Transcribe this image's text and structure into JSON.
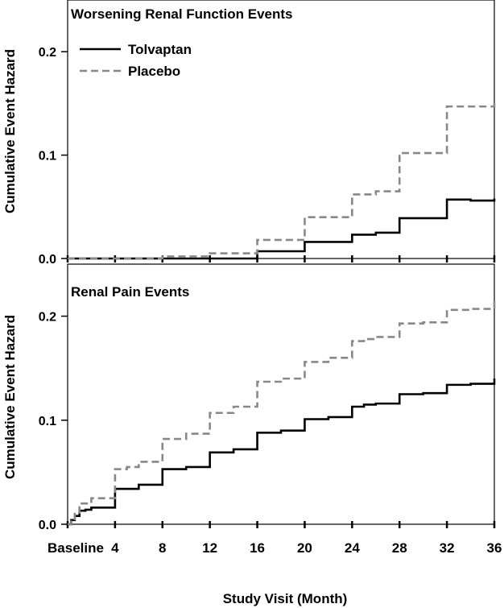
{
  "chart_data": [
    {
      "type": "line",
      "title": "Worsening Renal Function Events",
      "xlabel": "Study Visit (Month)",
      "ylabel": "Cumulative Event Hazard",
      "ylim": [
        0,
        0.25
      ],
      "yticks": [
        0.0,
        0.1,
        0.2
      ],
      "ytick_labels": [
        "0.0",
        "0.1",
        "0.2"
      ],
      "xlim": [
        0,
        36
      ],
      "xticks": [
        0,
        4,
        8,
        12,
        16,
        20,
        24,
        28,
        32,
        36
      ],
      "legend_position": "top-left",
      "series": [
        {
          "name": "Tolvaptan",
          "color": "#000000",
          "style": "solid",
          "x": [
            0,
            16,
            20,
            24,
            26,
            28,
            32,
            34,
            36
          ],
          "y": [
            0.0,
            0.007,
            0.016,
            0.023,
            0.025,
            0.039,
            0.057,
            0.056,
            0.058
          ]
        },
        {
          "name": "Placebo",
          "color": "#888888",
          "style": "dashed",
          "x": [
            0,
            8,
            12,
            16,
            20,
            24,
            26,
            28,
            32,
            36
          ],
          "y": [
            0.0,
            0.002,
            0.005,
            0.018,
            0.04,
            0.062,
            0.065,
            0.102,
            0.147,
            0.153
          ]
        }
      ]
    },
    {
      "type": "line",
      "title": "Renal Pain Events",
      "xlabel": "Study Visit (Month)",
      "ylabel": "Cumulative Event Hazard",
      "ylim": [
        0,
        0.25
      ],
      "yticks": [
        0.0,
        0.1,
        0.2
      ],
      "ytick_labels": [
        "0.0",
        "0.1",
        "0.2"
      ],
      "xlim": [
        0,
        36
      ],
      "xticks": [
        0,
        4,
        8,
        12,
        16,
        20,
        24,
        28,
        32,
        36
      ],
      "xtick_labels": [
        "Baseline",
        "4",
        "8",
        "12",
        "16",
        "20",
        "24",
        "28",
        "32",
        "36"
      ],
      "series": [
        {
          "name": "Tolvaptan",
          "color": "#000000",
          "style": "solid",
          "x": [
            0,
            0.3,
            0.6,
            1,
            1.5,
            2,
            4,
            6,
            8,
            10,
            12,
            14,
            16,
            18,
            20,
            22,
            24,
            25,
            26,
            28,
            30,
            32,
            34,
            36
          ],
          "y": [
            0.0,
            0.004,
            0.008,
            0.013,
            0.014,
            0.016,
            0.034,
            0.038,
            0.053,
            0.055,
            0.069,
            0.072,
            0.088,
            0.09,
            0.101,
            0.103,
            0.113,
            0.115,
            0.116,
            0.125,
            0.126,
            0.134,
            0.135,
            0.14
          ]
        },
        {
          "name": "Placebo",
          "color": "#888888",
          "style": "dashed",
          "x": [
            0,
            0.3,
            0.6,
            1,
            2,
            4,
            5,
            6,
            8,
            10,
            12,
            14,
            16,
            18,
            20,
            22,
            24,
            25,
            26,
            28,
            30,
            32,
            34,
            36
          ],
          "y": [
            0.0,
            0.005,
            0.01,
            0.02,
            0.025,
            0.053,
            0.055,
            0.06,
            0.082,
            0.087,
            0.107,
            0.113,
            0.137,
            0.14,
            0.156,
            0.16,
            0.176,
            0.178,
            0.18,
            0.193,
            0.194,
            0.206,
            0.207,
            0.218
          ]
        }
      ]
    }
  ]
}
